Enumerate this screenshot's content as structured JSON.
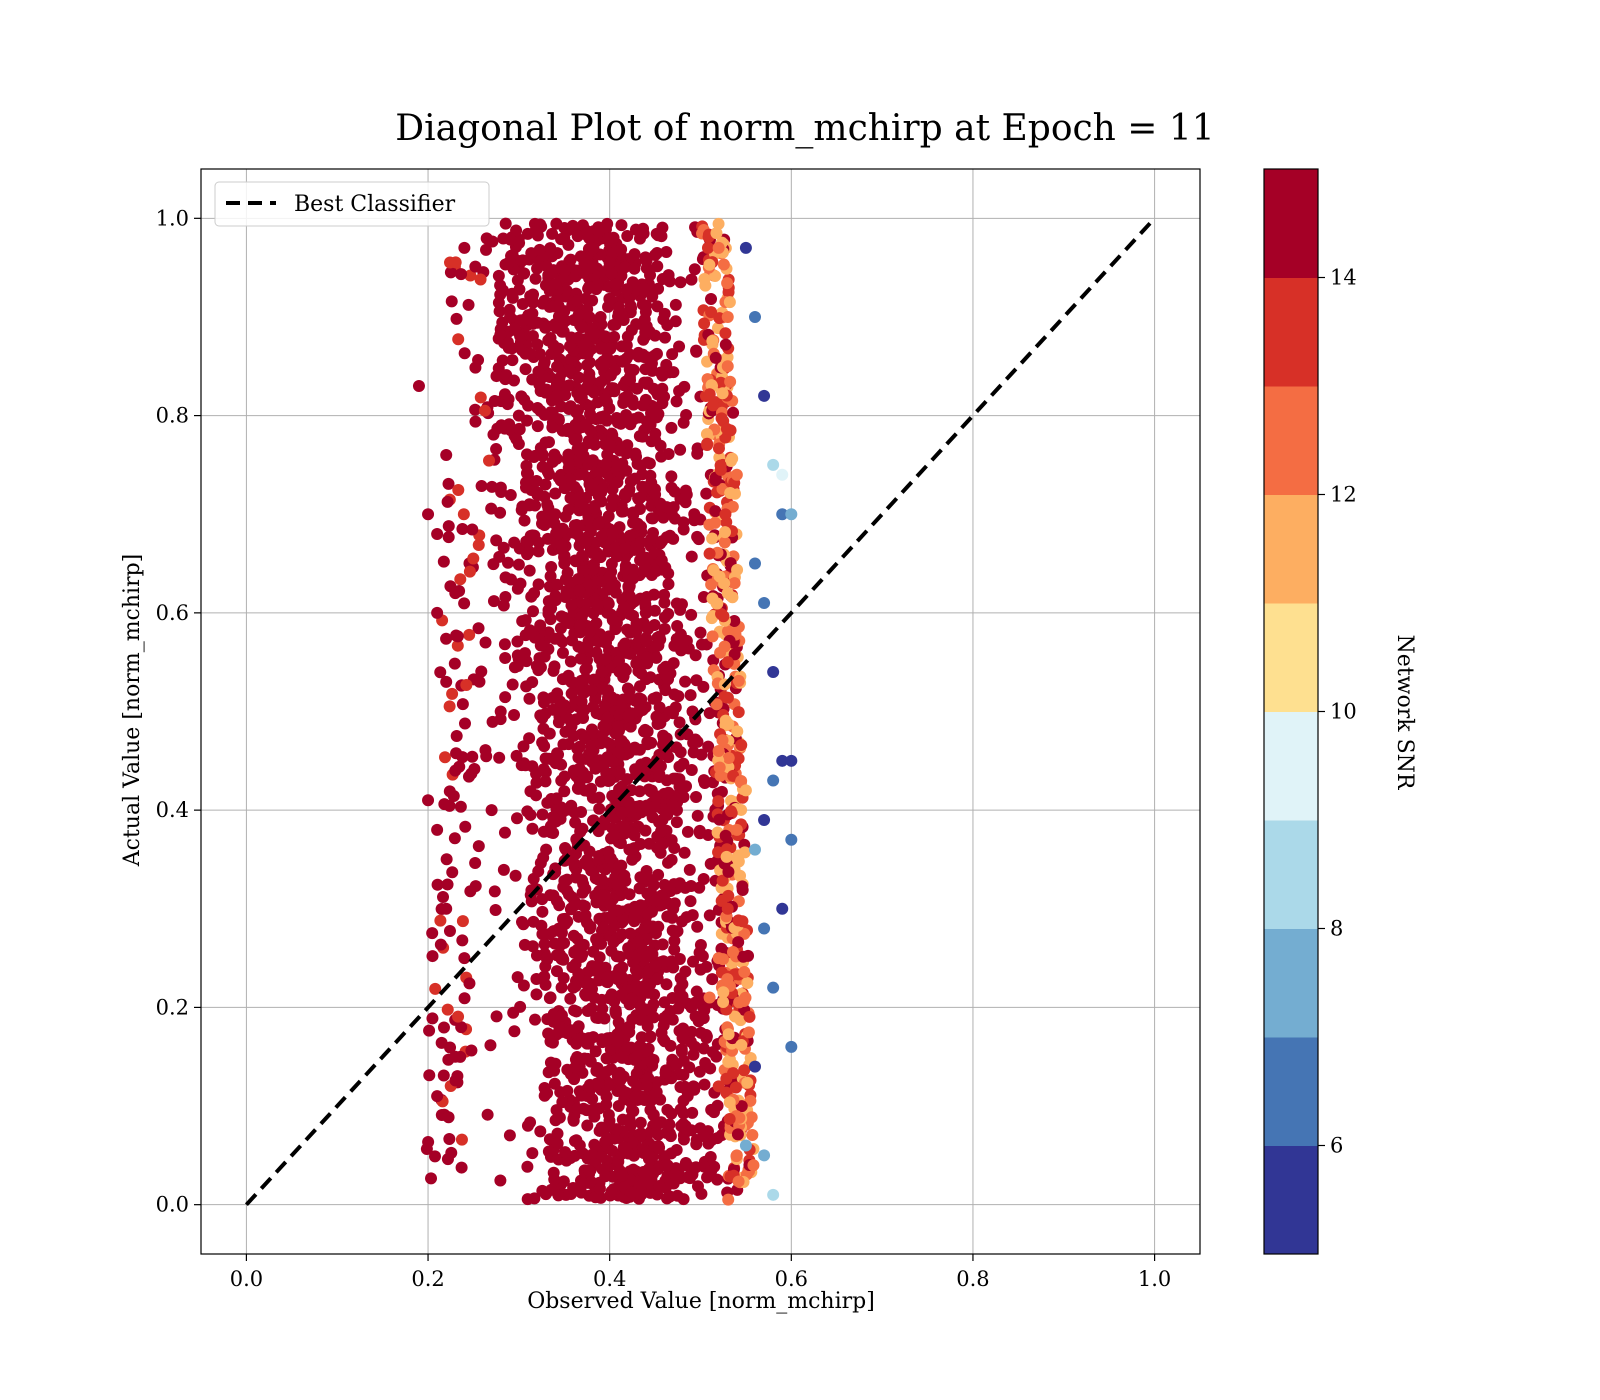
{
  "chart_data": {
    "type": "scatter",
    "title": "Diagonal Plot of norm_mchirp at Epoch = 11",
    "xlabel": "Observed Value [norm_mchirp]",
    "ylabel": "Actual Value [norm_mchirp]",
    "xlim": [
      -0.05,
      1.05
    ],
    "ylim": [
      -0.05,
      1.05
    ],
    "x_ticks": [
      "0.0",
      "0.2",
      "0.4",
      "0.6",
      "0.8",
      "1.0"
    ],
    "y_ticks": [
      "0.0",
      "0.2",
      "0.4",
      "0.6",
      "0.8",
      "1.0"
    ],
    "grid": true,
    "legend": {
      "placement": "upper-left",
      "entries": [
        {
          "label": "Best Classifier",
          "style": "dashed",
          "color": "#000000"
        }
      ]
    },
    "reference_line": {
      "name": "Best Classifier",
      "x": [
        0.0,
        1.0
      ],
      "y": [
        0.0,
        1.0
      ]
    },
    "colorbar": {
      "label": "Network SNR",
      "range": [
        5,
        15
      ],
      "ticks": [
        "6",
        "8",
        "10",
        "12",
        "14"
      ],
      "colors": [
        "#313695",
        "#4575b4",
        "#74add1",
        "#abd9e9",
        "#e0f3f8",
        "#fee090",
        "#fdae61",
        "#f46d43",
        "#d73027",
        "#a50026"
      ]
    },
    "points_summary": {
      "description_x_range": [
        0.19,
        0.6
      ],
      "description_y_range": [
        0.0,
        1.0
      ]
    },
    "series": [
      {
        "x": [
          0.38,
          0.42,
          0.3,
          0.45,
          0.35,
          0.5,
          0.28,
          0.4,
          0.33,
          0.47,
          0.36,
          0.43,
          0.31,
          0.39,
          0.44,
          0.27,
          0.49,
          0.34,
          0.41,
          0.37
        ],
        "y": [
          0.95,
          0.88,
          0.8,
          0.72,
          0.65,
          0.58,
          0.5,
          0.43,
          0.36,
          0.3,
          0.22,
          0.15,
          0.08,
          0.9,
          0.6,
          0.4,
          0.2,
          0.7,
          0.1,
          0.5
        ],
        "snr": [
          15,
          15,
          15,
          15,
          15,
          15,
          15,
          15,
          15,
          15,
          15,
          15,
          15,
          15,
          15,
          15,
          15,
          15,
          15,
          15
        ]
      },
      {
        "x": [
          0.52,
          0.53,
          0.54,
          0.51,
          0.53,
          0.52,
          0.54,
          0.53,
          0.51,
          0.52,
          0.54,
          0.53,
          0.55,
          0.52,
          0.53
        ],
        "y": [
          0.97,
          0.85,
          0.74,
          0.66,
          0.55,
          0.46,
          0.38,
          0.3,
          0.21,
          0.12,
          0.05,
          0.62,
          0.42,
          0.25,
          0.9
        ],
        "snr": [
          12,
          12,
          12,
          13,
          13,
          12,
          12,
          13,
          12,
          13,
          12,
          11,
          11,
          12,
          12
        ]
      },
      {
        "x": [
          0.55,
          0.56,
          0.57,
          0.58,
          0.59,
          0.6,
          0.56,
          0.57,
          0.58,
          0.59,
          0.6,
          0.58,
          0.57,
          0.56,
          0.59,
          0.6,
          0.57,
          0.58,
          0.6,
          0.56,
          0.55,
          0.57,
          0.58,
          0.59
        ],
        "y": [
          0.97,
          0.9,
          0.82,
          0.75,
          0.7,
          0.7,
          0.65,
          0.61,
          0.54,
          0.45,
          0.45,
          0.43,
          0.39,
          0.36,
          0.3,
          0.37,
          0.28,
          0.22,
          0.16,
          0.14,
          0.06,
          0.05,
          0.01,
          0.74
        ],
        "snr": [
          5,
          6,
          5,
          8,
          6,
          7,
          6,
          6,
          5,
          5,
          5,
          6,
          5,
          7,
          5,
          6,
          6,
          6,
          6,
          5,
          7,
          7,
          8,
          9
        ]
      },
      {
        "x": [
          0.19,
          0.2,
          0.21,
          0.22,
          0.23,
          0.24,
          0.21,
          0.22,
          0.2,
          0.23,
          0.21,
          0.22,
          0.24,
          0.21,
          0.23
        ],
        "y": [
          0.83,
          0.7,
          0.68,
          0.76,
          0.62,
          0.97,
          0.6,
          0.53,
          0.41,
          0.44,
          0.38,
          0.3,
          0.25,
          0.11,
          0.15
        ],
        "snr": [
          14,
          15,
          14,
          15,
          15,
          15,
          15,
          15,
          15,
          15,
          15,
          15,
          15,
          15,
          14
        ]
      }
    ]
  }
}
